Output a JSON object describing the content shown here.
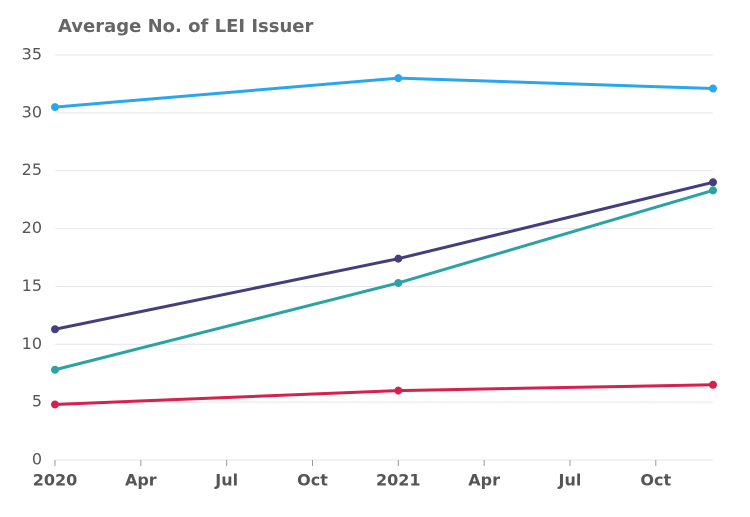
{
  "chart_data": {
    "type": "line",
    "title": "Average No. of LEI Issuer",
    "x": [
      "2020-01",
      "2021-01",
      "2021-12"
    ],
    "xlim": [
      "2020-01",
      "2021-12"
    ],
    "xticks": [
      {
        "value": "2020-01",
        "label": "2020"
      },
      {
        "value": "2020-04",
        "label": "Apr"
      },
      {
        "value": "2020-07",
        "label": "Jul"
      },
      {
        "value": "2020-10",
        "label": "Oct"
      },
      {
        "value": "2021-01",
        "label": "2021"
      },
      {
        "value": "2021-04",
        "label": "Apr"
      },
      {
        "value": "2021-07",
        "label": "Jul"
      },
      {
        "value": "2021-10",
        "label": "Oct"
      }
    ],
    "ylim": [
      0,
      35
    ],
    "yticks": [
      0,
      5,
      10,
      15,
      20,
      25,
      30,
      35
    ],
    "grid": true,
    "series": [
      {
        "color": "#2aa6ef",
        "values": [
          30.5,
          33,
          32.1
        ]
      },
      {
        "color": "#443f7c",
        "values": [
          11.3,
          17.4,
          24
        ]
      },
      {
        "color": "#2ba3a4",
        "values": [
          7.8,
          15.3,
          23.3
        ]
      },
      {
        "color": "#d6204e",
        "values": [
          4.8,
          6,
          6.5
        ]
      }
    ]
  }
}
